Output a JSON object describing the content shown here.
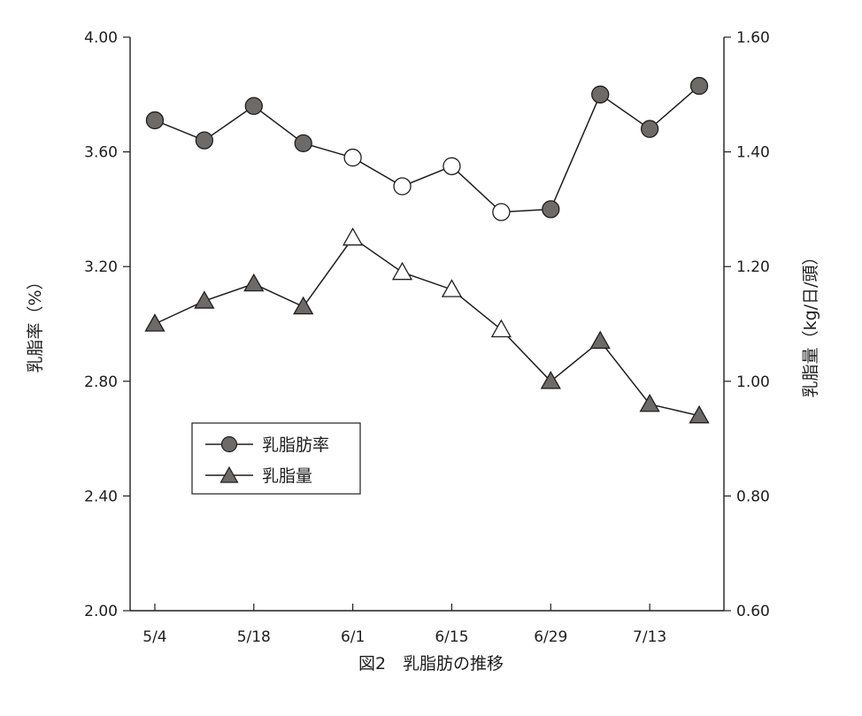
{
  "chart_data": {
    "type": "line",
    "title": "",
    "caption": "図2　乳脂肪の推移",
    "x": [
      "5/4",
      "5/11",
      "5/18",
      "5/25",
      "6/1",
      "6/8",
      "6/15",
      "6/22",
      "6/29",
      "7/6",
      "7/13",
      "7/20"
    ],
    "xtick_labels": [
      "5/4",
      "5/18",
      "6/1",
      "6/15",
      "6/29",
      "7/13"
    ],
    "y_left": {
      "label": "乳脂率（%）",
      "ylim": [
        2.0,
        4.0
      ],
      "ticks": [
        "2.00",
        "2.40",
        "2.80",
        "3.20",
        "3.60",
        "4.00"
      ]
    },
    "y_right": {
      "label": "乳脂量（kg/日/頭）",
      "ylim": [
        0.6,
        1.6
      ],
      "ticks": [
        "0.60",
        "0.80",
        "1.00",
        "1.20",
        "1.40",
        "1.60"
      ]
    },
    "series": [
      {
        "name": "乳脂肪率",
        "axis": "left",
        "marker": "circle",
        "values": [
          3.71,
          3.64,
          3.76,
          3.63,
          3.58,
          3.48,
          3.55,
          3.39,
          3.4,
          3.8,
          3.68,
          3.83
        ],
        "hollow": [
          false,
          false,
          false,
          false,
          true,
          true,
          true,
          true,
          false,
          false,
          false,
          false
        ]
      },
      {
        "name": "乳脂量",
        "axis": "right",
        "marker": "triangle",
        "values": [
          1.1,
          1.14,
          1.17,
          1.13,
          1.25,
          1.19,
          1.16,
          1.09,
          1.0,
          1.07,
          0.96,
          0.94
        ],
        "hollow": [
          false,
          false,
          false,
          false,
          true,
          true,
          true,
          true,
          false,
          false,
          false,
          false
        ]
      }
    ],
    "legend_position": "lower-left",
    "grid": false,
    "colors": {
      "filled_marker": "#6e6a67",
      "line": "#1e1e1e"
    }
  }
}
